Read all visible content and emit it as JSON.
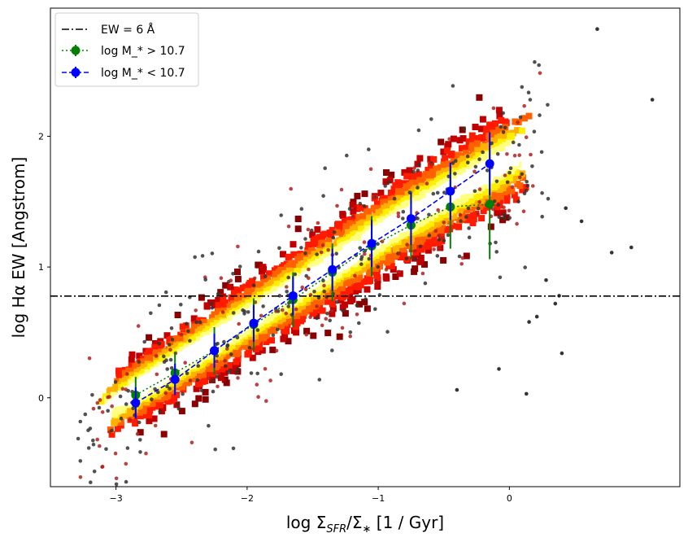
{
  "chart_data": {
    "type": "scatter",
    "xlabel": "log Σ_{SFR}/Σ_* [1 / Gyr]",
    "ylabel": "log Hα EW [Angstrom]",
    "xlim": [
      -3.5,
      1.3
    ],
    "ylim": [
      -0.68,
      2.98
    ],
    "xticks": [
      -3,
      -2,
      -1,
      0
    ],
    "yticks": [
      0,
      1,
      2
    ],
    "grid": false,
    "legend_position": "top-left",
    "reference_line": {
      "name": "EW = 6 Å",
      "y": 0.778,
      "style": "dash-dot",
      "color": "#000000"
    },
    "density_cloud": {
      "description_colormap": "hot",
      "ridge": {
        "x": [
          -2.9,
          -2.5,
          -2.0,
          -1.5,
          -1.0,
          -0.5,
          -0.15
        ],
        "y": [
          0.02,
          0.18,
          0.52,
          0.88,
          1.22,
          1.55,
          1.78
        ]
      }
    },
    "series": [
      {
        "name": "log M_* > 10.7",
        "color": "#008000",
        "linestyle": "dotted",
        "x": [
          -2.85,
          -2.55,
          -2.25,
          -1.95,
          -1.65,
          -1.35,
          -1.05,
          -0.75,
          -0.45,
          -0.15
        ],
        "y": [
          0.02,
          0.19,
          0.36,
          0.56,
          0.75,
          0.96,
          1.16,
          1.32,
          1.46,
          1.48
        ],
        "yerr": [
          0.14,
          0.16,
          0.18,
          0.2,
          0.21,
          0.22,
          0.23,
          0.26,
          0.32,
          0.42
        ]
      },
      {
        "name": "log M_* < 10.7",
        "color": "#0000ff",
        "linestyle": "dashed",
        "x": [
          -2.85,
          -2.55,
          -2.25,
          -1.95,
          -1.65,
          -1.35,
          -1.05,
          -0.75,
          -0.45,
          -0.15
        ],
        "y": [
          -0.04,
          0.14,
          0.36,
          0.57,
          0.78,
          0.98,
          1.18,
          1.37,
          1.58,
          1.79
        ],
        "yerr": [
          0.12,
          0.12,
          0.13,
          0.14,
          0.15,
          0.16,
          0.18,
          0.2,
          0.22,
          0.24
        ]
      }
    ],
    "legend": [
      {
        "label": "EW = 6 Å",
        "style": "dash-dot",
        "color": "#000000"
      },
      {
        "label": "log M_* > 10.7",
        "style": "dotted-marker",
        "color": "#008000"
      },
      {
        "label": "log M_* < 10.7",
        "style": "dashed-marker",
        "color": "#0000ff"
      }
    ]
  }
}
